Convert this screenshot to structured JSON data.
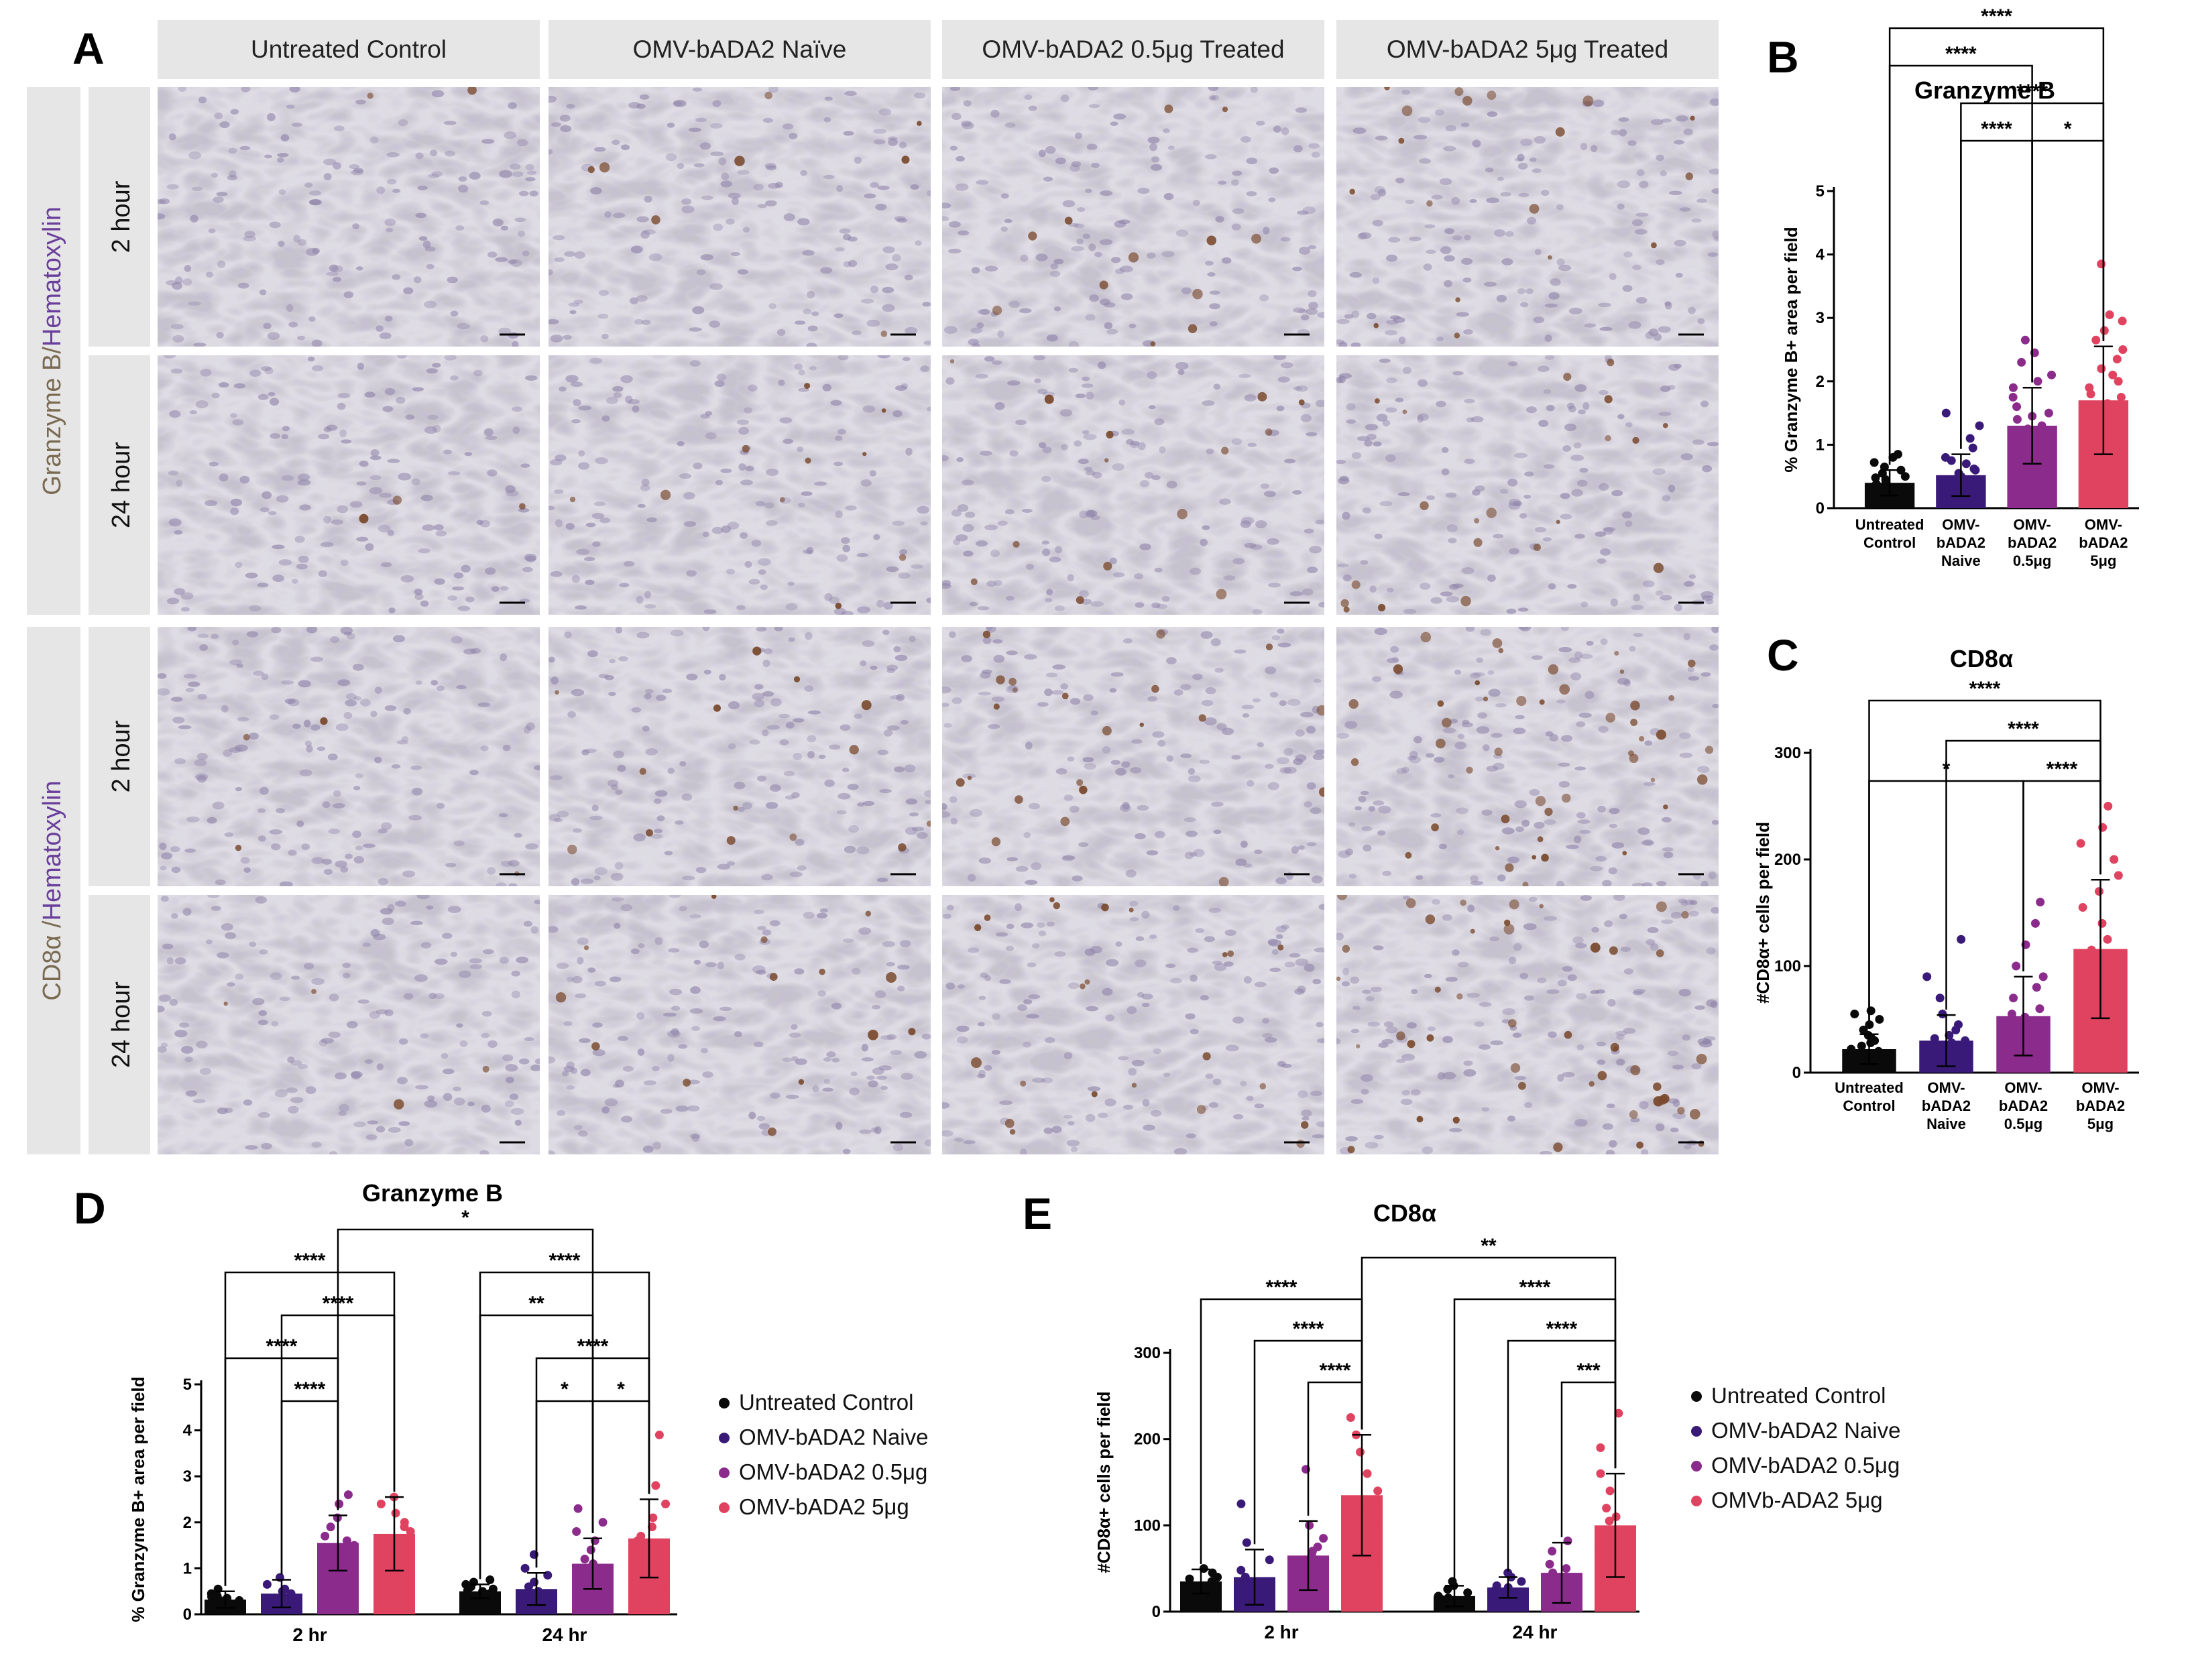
{
  "panelA": {
    "letter": "A",
    "columns": [
      "Untreated Control",
      "OMV-bADA2 Naïve",
      "OMV-bADA2 0.5μg Treated",
      "OMV-bADA2 5μg Treated"
    ],
    "blocks": [
      {
        "stain": "Granzyme B",
        "sep": "/",
        "counter": "Hematoxylin",
        "rows": [
          "2 hour",
          "24 hour"
        ],
        "color": "#7a6a52"
      },
      {
        "stain": "CD8α",
        "sep": " /",
        "counter": "Hematoxylin",
        "rows": [
          "2 hour",
          "24 hour"
        ],
        "color": "#7a6a52"
      }
    ],
    "colors": {
      "header_bg": "#e6e6e6",
      "tissue_base": "#c6c3cc",
      "nuclei": "#8f84aa",
      "dab": "#7a4a2e",
      "counter_text": "#6a3f9b"
    }
  },
  "chart_data": [
    {
      "id": "B",
      "letter": "B",
      "type": "bar",
      "title": "Granzyme B",
      "ylabel": "% Granzyme B+ area per field",
      "ylim": [
        0,
        5
      ],
      "yticks": [
        0,
        1,
        2,
        3,
        4,
        5
      ],
      "categories": [
        [
          "Untreated",
          "Control"
        ],
        [
          "OMV-",
          "bADA2",
          "Naive"
        ],
        [
          "OMV-",
          "bADA2",
          "0.5μg"
        ],
        [
          "OMV-",
          "bADA2",
          "5μg"
        ]
      ],
      "values": [
        0.4,
        0.52,
        1.3,
        1.7
      ],
      "sd": [
        0.2,
        0.33,
        0.6,
        0.85
      ],
      "colors": [
        "#0a0a0a",
        "#3a1a78",
        "#8b2c8c",
        "#e0435f"
      ],
      "points": [
        [
          0.3,
          0.35,
          0.42,
          0.5,
          0.55,
          0.6,
          0.65,
          0.72,
          0.8,
          0.85,
          0.25,
          0.3,
          0.38,
          0.45,
          0.2,
          0.28,
          0.48,
          0.33
        ],
        [
          0.2,
          0.3,
          0.45,
          0.55,
          0.62,
          0.7,
          0.8,
          0.95,
          1.1,
          1.3,
          1.5,
          0.35,
          0.25,
          0.4,
          0.6,
          0.5,
          0.75,
          0.15
        ],
        [
          0.6,
          0.8,
          0.95,
          1.1,
          1.2,
          1.3,
          1.4,
          1.5,
          1.6,
          1.75,
          1.9,
          2.1,
          2.3,
          2.45,
          2.65,
          0.9,
          1.25,
          1.05,
          1.45,
          2.0
        ],
        [
          0.75,
          1.0,
          1.2,
          1.35,
          1.5,
          1.65,
          1.8,
          1.9,
          2.0,
          2.1,
          2.2,
          2.35,
          2.5,
          2.65,
          2.8,
          2.95,
          3.05,
          3.85,
          1.55,
          1.75
        ]
      ],
      "sig": [
        {
          "from": 0,
          "to": 3,
          "label": "****",
          "level": 3
        },
        {
          "from": 0,
          "to": 2,
          "label": "****",
          "level": 2
        },
        {
          "from": 1,
          "to": 3,
          "label": "****",
          "level": 1
        },
        {
          "from": 1,
          "to": 2,
          "label": "****",
          "level": 0
        },
        {
          "from": 2,
          "to": 3,
          "label": "*",
          "level": 0
        }
      ]
    },
    {
      "id": "C",
      "letter": "C",
      "type": "bar",
      "title": "CD8α",
      "ylabel": "#CD8α+ cells per field",
      "ylim": [
        0,
        300
      ],
      "yticks": [
        0,
        100,
        200,
        300
      ],
      "categories": [
        [
          "Untreated",
          "Control"
        ],
        [
          "OMV-",
          "bADA2",
          "Naive"
        ],
        [
          "OMV-",
          "bADA2",
          "0.5μg"
        ],
        [
          "OMV-",
          "bADA2",
          "5μg"
        ]
      ],
      "values": [
        22,
        30,
        53,
        116
      ],
      "sd": [
        14,
        24,
        37,
        65
      ],
      "colors": [
        "#0a0a0a",
        "#3a1a78",
        "#8b2c8c",
        "#e0435f"
      ],
      "points": [
        [
          8,
          12,
          15,
          18,
          20,
          22,
          25,
          28,
          30,
          35,
          40,
          45,
          50,
          55,
          58,
          10,
          17,
          32
        ],
        [
          10,
          14,
          18,
          22,
          25,
          28,
          32,
          35,
          40,
          45,
          55,
          70,
          90,
          125,
          20,
          30,
          16
        ],
        [
          8,
          15,
          22,
          30,
          38,
          45,
          52,
          60,
          70,
          80,
          90,
          100,
          120,
          140,
          160,
          25,
          55
        ],
        [
          30,
          50,
          65,
          80,
          95,
          105,
          115,
          125,
          140,
          155,
          170,
          185,
          200,
          215,
          230,
          250,
          90,
          110
        ]
      ],
      "sig": [
        {
          "from": 0,
          "to": 3,
          "label": "****",
          "level": 2
        },
        {
          "from": 1,
          "to": 3,
          "label": "****",
          "level": 1
        },
        {
          "from": 0,
          "to": 2,
          "label": "*",
          "level": 0
        },
        {
          "from": 2,
          "to": 3,
          "label": "****",
          "level": 0
        }
      ]
    },
    {
      "id": "D",
      "letter": "D",
      "type": "bar",
      "title": "Granzyme B",
      "ylabel": "% Granzyme B+ area per field",
      "ylim": [
        0,
        5
      ],
      "yticks": [
        0,
        1,
        2,
        3,
        4,
        5
      ],
      "groups": [
        "2 hr",
        "24 hr"
      ],
      "series": [
        {
          "name": "Untreated Control",
          "color": "#0a0a0a",
          "values": [
            0.32,
            0.5
          ],
          "sd": [
            0.18,
            0.15
          ],
          "points": [
            [
              0.1,
              0.2,
              0.25,
              0.3,
              0.35,
              0.4,
              0.45,
              0.55,
              0.15,
              0.3,
              0.38
            ],
            [
              0.35,
              0.4,
              0.45,
              0.5,
              0.55,
              0.6,
              0.65,
              0.7,
              0.75,
              0.42,
              0.52
            ]
          ]
        },
        {
          "name": "OMV-bADA2 Naive",
          "color": "#3a1a78",
          "values": [
            0.45,
            0.55
          ],
          "sd": [
            0.3,
            0.35
          ],
          "points": [
            [
              0.15,
              0.25,
              0.35,
              0.45,
              0.55,
              0.65,
              0.8,
              0.3,
              0.5
            ],
            [
              0.1,
              0.2,
              0.35,
              0.45,
              0.6,
              0.7,
              0.85,
              1.0,
              1.3,
              0.3,
              0.5
            ]
          ]
        },
        {
          "name": "OMV-bADA2 0.5μg",
          "color": "#8b2c8c",
          "values": [
            1.55,
            1.1
          ],
          "sd": [
            0.6,
            0.55
          ],
          "points": [
            [
              0.7,
              1.0,
              1.3,
              1.5,
              1.7,
              1.9,
              2.1,
              2.4,
              2.6,
              1.2,
              1.6
            ],
            [
              0.4,
              0.6,
              0.8,
              1.0,
              1.1,
              1.2,
              1.4,
              1.6,
              1.8,
              2.0,
              2.3,
              0.9
            ]
          ]
        },
        {
          "name": "OMV-bADA2 5μg",
          "color": "#e0435f",
          "values": [
            1.75,
            1.65
          ],
          "sd": [
            0.8,
            0.85
          ],
          "points": [
            [
              0.8,
              1.1,
              1.4,
              1.6,
              1.8,
              2.0,
              2.2,
              2.4,
              2.55,
              1.3,
              1.9
            ],
            [
              0.6,
              0.9,
              1.1,
              1.3,
              1.5,
              1.7,
              1.9,
              2.1,
              2.4,
              2.8,
              3.9,
              1.2,
              1.6
            ]
          ]
        }
      ],
      "sig": [
        {
          "g1": 0,
          "s1": 1,
          "g2": 0,
          "s2": 2,
          "label": "****",
          "level": 0
        },
        {
          "g1": 0,
          "s1": 0,
          "g2": 0,
          "s2": 2,
          "label": "****",
          "level": 1
        },
        {
          "g1": 0,
          "s1": 1,
          "g2": 0,
          "s2": 3,
          "label": "****",
          "level": 2
        },
        {
          "g1": 0,
          "s1": 0,
          "g2": 0,
          "s2": 3,
          "label": "****",
          "level": 3
        },
        {
          "g1": 1,
          "s1": 1,
          "g2": 1,
          "s2": 2,
          "label": "*",
          "level": 0
        },
        {
          "g1": 1,
          "s1": 2,
          "g2": 1,
          "s2": 3,
          "label": "*",
          "level": 0
        },
        {
          "g1": 1,
          "s1": 1,
          "g2": 1,
          "s2": 3,
          "label": "****",
          "level": 1
        },
        {
          "g1": 1,
          "s1": 0,
          "g2": 1,
          "s2": 2,
          "label": "**",
          "level": 2
        },
        {
          "g1": 1,
          "s1": 0,
          "g2": 1,
          "s2": 3,
          "label": "****",
          "level": 3
        },
        {
          "g1": 0,
          "s1": 2,
          "g2": 1,
          "s2": 2,
          "label": "*",
          "level": 4
        }
      ]
    },
    {
      "id": "E",
      "letter": "E",
      "type": "bar",
      "title": "CD8α",
      "ylabel": "#CD8α+ cells per field",
      "ylim": [
        0,
        300
      ],
      "yticks": [
        0,
        100,
        200,
        300
      ],
      "groups": [
        "2 hr",
        "24 hr"
      ],
      "series": [
        {
          "name": "Untreated Control",
          "color": "#0a0a0a",
          "values": [
            35,
            18
          ],
          "sd": [
            14,
            12
          ],
          "points": [
            [
              15,
              20,
              25,
              30,
              35,
              40,
              45,
              50,
              28,
              38,
              22
            ],
            [
              5,
              8,
              10,
              14,
              18,
              22,
              26,
              30,
              35,
              12,
              16
            ]
          ]
        },
        {
          "name": "OMV-bADA2 Naive",
          "color": "#3a1a78",
          "values": [
            40,
            28
          ],
          "sd": [
            32,
            12
          ],
          "points": [
            [
              10,
              18,
              25,
              32,
              40,
              48,
              60,
              80,
              125,
              22,
              35
            ],
            [
              10,
              15,
              20,
              25,
              30,
              35,
              40,
              45,
              22,
              28
            ]
          ]
        },
        {
          "name": "OMV-bADA2 0.5μg",
          "color": "#8b2c8c",
          "values": [
            65,
            45
          ],
          "sd": [
            40,
            35
          ],
          "points": [
            [
              20,
              35,
              45,
              55,
              65,
              75,
              85,
              100,
              165,
              50,
              70
            ],
            [
              10,
              20,
              28,
              35,
              45,
              55,
              70,
              82,
              30,
              50
            ]
          ]
        },
        {
          "name": "OMVb-ADA2 5μg",
          "color": "#e0435f",
          "values": [
            135,
            100
          ],
          "sd": [
            70,
            60
          ],
          "points": [
            [
              40,
              60,
              80,
              100,
              120,
              140,
              160,
              185,
              205,
              225,
              90,
              130
            ],
            [
              30,
              50,
              70,
              85,
              95,
              105,
              120,
              140,
              160,
              190,
              230,
              80,
              110
            ]
          ]
        }
      ],
      "sig": [
        {
          "g1": 0,
          "s1": 2,
          "g2": 0,
          "s2": 3,
          "label": "****",
          "level": 0
        },
        {
          "g1": 0,
          "s1": 1,
          "g2": 0,
          "s2": 3,
          "label": "****",
          "level": 1
        },
        {
          "g1": 0,
          "s1": 0,
          "g2": 0,
          "s2": 3,
          "label": "****",
          "level": 2
        },
        {
          "g1": 1,
          "s1": 2,
          "g2": 1,
          "s2": 3,
          "label": "***",
          "level": 0
        },
        {
          "g1": 1,
          "s1": 1,
          "g2": 1,
          "s2": 3,
          "label": "****",
          "level": 1
        },
        {
          "g1": 1,
          "s1": 0,
          "g2": 1,
          "s2": 3,
          "label": "****",
          "level": 2
        },
        {
          "g1": 0,
          "s1": 3,
          "g2": 1,
          "s2": 3,
          "label": "**",
          "level": 3
        }
      ]
    }
  ]
}
